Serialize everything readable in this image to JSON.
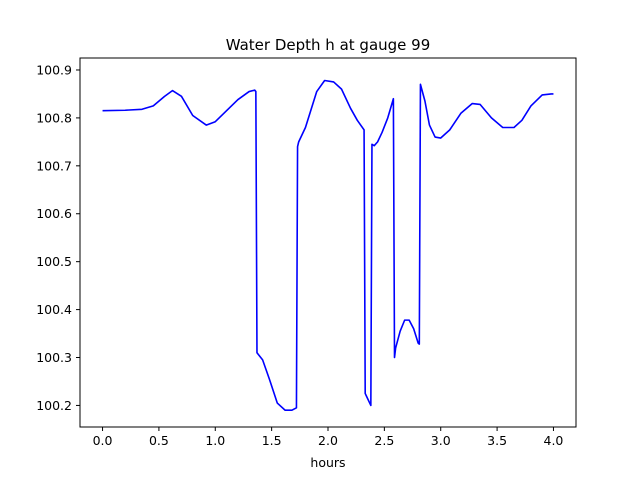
{
  "chart_data": {
    "type": "line",
    "title": "Water Depth h at gauge 99",
    "xlabel": "hours",
    "ylabel": "",
    "xlim": [
      -0.2,
      4.2
    ],
    "ylim": [
      100.155,
      100.925
    ],
    "xticks": [
      0.0,
      0.5,
      1.0,
      1.5,
      2.0,
      2.5,
      3.0,
      3.5,
      4.0
    ],
    "xtick_labels": [
      "0.0",
      "0.5",
      "1.0",
      "1.5",
      "2.0",
      "2.5",
      "3.0",
      "3.5",
      "4.0"
    ],
    "yticks": [
      100.2,
      100.3,
      100.4,
      100.5,
      100.6,
      100.7,
      100.8,
      100.9
    ],
    "ytick_labels": [
      "100.2",
      "100.3",
      "100.4",
      "100.5",
      "100.6",
      "100.7",
      "100.8",
      "100.9"
    ],
    "grid": false,
    "series": [
      {
        "color": "#0000ff",
        "x": [
          0.0,
          0.2,
          0.35,
          0.45,
          0.55,
          0.62,
          0.7,
          0.8,
          0.92,
          1.0,
          1.1,
          1.2,
          1.3,
          1.35,
          1.36,
          1.37,
          1.42,
          1.48,
          1.55,
          1.62,
          1.68,
          1.72,
          1.73,
          1.74,
          1.8,
          1.9,
          1.97,
          2.05,
          2.12,
          2.2,
          2.26,
          2.32,
          2.33,
          2.34,
          2.37,
          2.38,
          2.39,
          2.41,
          2.44,
          2.48,
          2.53,
          2.58,
          2.59,
          2.6,
          2.64,
          2.68,
          2.72,
          2.76,
          2.8,
          2.81,
          2.82,
          2.86,
          2.9,
          2.95,
          3.0,
          3.08,
          3.18,
          3.28,
          3.35,
          3.45,
          3.55,
          3.65,
          3.72,
          3.8,
          3.9,
          3.98,
          4.0
        ],
        "y": [
          100.815,
          100.816,
          100.818,
          100.825,
          100.845,
          100.857,
          100.845,
          100.805,
          100.785,
          100.792,
          100.815,
          100.838,
          100.855,
          100.858,
          100.855,
          100.31,
          100.295,
          100.255,
          100.205,
          100.19,
          100.19,
          100.195,
          100.74,
          100.75,
          100.78,
          100.855,
          100.878,
          100.875,
          100.86,
          100.82,
          100.795,
          100.775,
          100.225,
          100.22,
          100.205,
          100.2,
          100.745,
          100.742,
          100.75,
          100.77,
          100.8,
          100.84,
          100.3,
          100.32,
          100.355,
          100.378,
          100.378,
          100.36,
          100.33,
          100.328,
          100.87,
          100.835,
          100.785,
          100.76,
          100.758,
          100.775,
          100.81,
          100.83,
          100.828,
          100.8,
          100.78,
          100.78,
          100.795,
          100.825,
          100.848,
          100.85,
          100.85
        ]
      }
    ]
  }
}
